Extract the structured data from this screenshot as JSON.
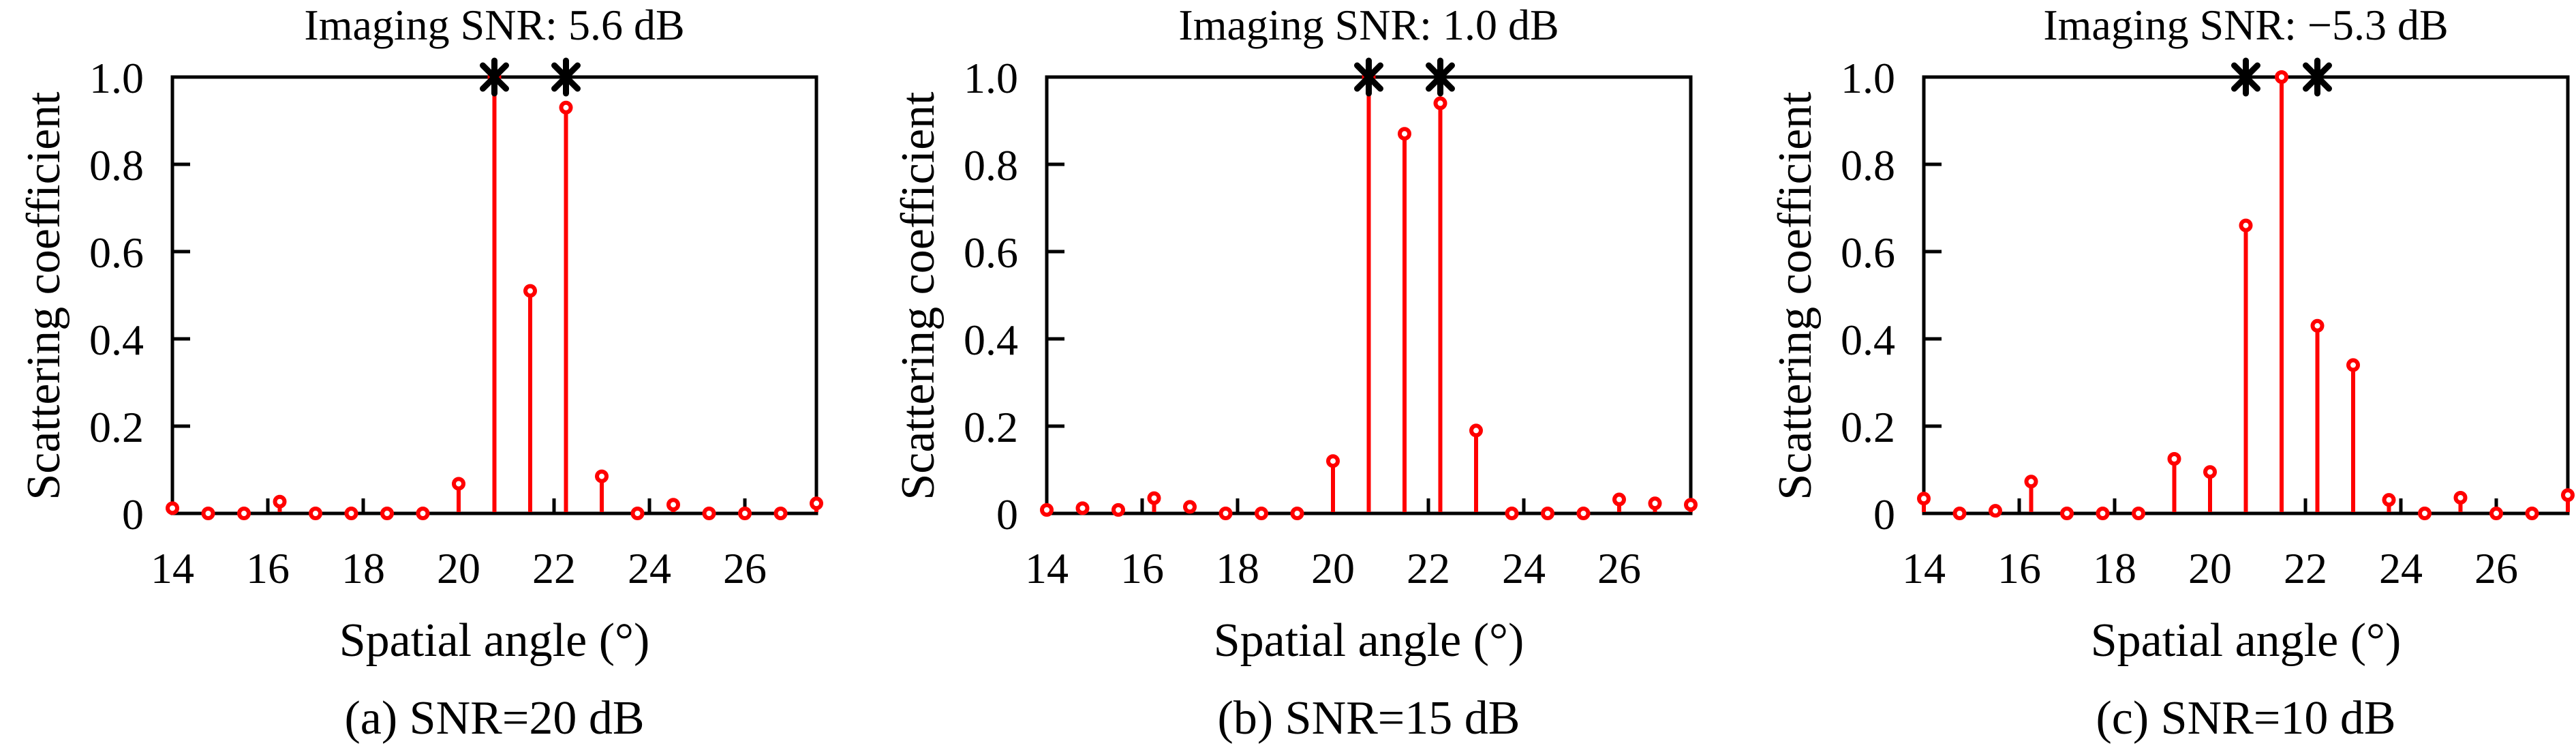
{
  "style": {
    "stem_color": "#ff0000",
    "marker_fill": "#ffffff",
    "axis_color": "#000000",
    "truth_marker_color": "#000000",
    "background": "#ffffff"
  },
  "chart_data": [
    {
      "type": "stem",
      "title": "Imaging SNR: 5.6 dB",
      "caption": "(a) SNR=20 dB",
      "xlabel": "Spatial angle (°)",
      "ylabel": "Scattering coefficient",
      "xlim": [
        14,
        27.5
      ],
      "ylim": [
        0,
        1.0
      ],
      "xticks": [
        14,
        16,
        18,
        20,
        22,
        24,
        26
      ],
      "ytick_values": [
        0,
        0.2,
        0.4,
        0.6,
        0.8,
        1.0
      ],
      "ytick_labels": [
        "0",
        "0.2",
        "0.4",
        "0.6",
        "0.8",
        "1.0"
      ],
      "grid": false,
      "legend": false,
      "x": [
        14,
        14.75,
        15.5,
        16.25,
        17,
        17.75,
        18.5,
        19.25,
        20,
        20.75,
        21.5,
        22.25,
        23,
        23.75,
        24.5,
        25.25,
        26,
        26.75,
        27.5
      ],
      "values": [
        0.012,
        0,
        0,
        0.027,
        0,
        0,
        0,
        0,
        0.068,
        1.0,
        0.51,
        0.93,
        0.085,
        0,
        0.02,
        0,
        0,
        0,
        0.023
      ],
      "truth_markers": {
        "symbol": "asterisk",
        "x": [
          20.75,
          22.25
        ],
        "y": 1.0
      }
    },
    {
      "type": "stem",
      "title": "Imaging SNR: 1.0 dB",
      "caption": "(b) SNR=15 dB",
      "xlabel": "Spatial angle (°)",
      "ylabel": "Scattering coefficient",
      "xlim": [
        14,
        27.5
      ],
      "ylim": [
        0,
        1.0
      ],
      "xticks": [
        14,
        16,
        18,
        20,
        22,
        24,
        26
      ],
      "ytick_values": [
        0,
        0.2,
        0.4,
        0.6,
        0.8,
        1.0
      ],
      "ytick_labels": [
        "0",
        "0.2",
        "0.4",
        "0.6",
        "0.8",
        "1.0"
      ],
      "grid": false,
      "legend": false,
      "x": [
        14,
        14.75,
        15.5,
        16.25,
        17,
        17.75,
        18.5,
        19.25,
        20,
        20.75,
        21.5,
        22.25,
        23,
        23.75,
        24.5,
        25.25,
        26,
        26.75,
        27.5
      ],
      "values": [
        0.008,
        0.012,
        0.008,
        0.035,
        0.015,
        0,
        0,
        0,
        0.12,
        1.0,
        0.87,
        0.94,
        0.19,
        0,
        0,
        0,
        0.032,
        0.023,
        0.02
      ],
      "truth_markers": {
        "symbol": "asterisk",
        "x": [
          20.75,
          22.25
        ],
        "y": 1.0
      }
    },
    {
      "type": "stem",
      "title": "Imaging SNR: −5.3 dB",
      "caption": "(c) SNR=10 dB",
      "xlabel": "Spatial angle (°)",
      "ylabel": "Scattering coefficient",
      "xlim": [
        14,
        27.5
      ],
      "ylim": [
        0,
        1.0
      ],
      "xticks": [
        14,
        16,
        18,
        20,
        22,
        24,
        26
      ],
      "ytick_values": [
        0,
        0.2,
        0.4,
        0.6,
        0.8,
        1.0
      ],
      "ytick_labels": [
        "0",
        "0.2",
        "0.4",
        "0.6",
        "0.8",
        "1.0"
      ],
      "grid": false,
      "legend": false,
      "x": [
        14,
        14.75,
        15.5,
        16.25,
        17,
        17.75,
        18.5,
        19.25,
        20,
        20.75,
        21.5,
        22.25,
        23,
        23.75,
        24.5,
        25.25,
        26,
        26.75,
        27.5
      ],
      "values": [
        0.034,
        0,
        0.006,
        0.073,
        0,
        0,
        0,
        0.125,
        0.095,
        0.66,
        1.0,
        0.43,
        0.34,
        0.031,
        0,
        0.036,
        0,
        0,
        0.042
      ],
      "truth_markers": {
        "symbol": "asterisk",
        "x": [
          20.75,
          22.25
        ],
        "y": 1.0
      }
    }
  ]
}
